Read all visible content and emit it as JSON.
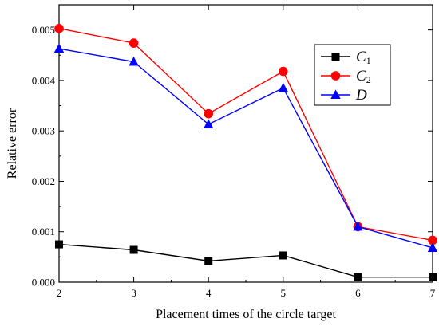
{
  "chart_data": {
    "type": "line",
    "title": "",
    "xlabel": "Placement times of the circle target",
    "ylabel": "Relative error",
    "x": [
      2,
      3,
      4,
      5,
      6,
      7
    ],
    "xlim": [
      2,
      7
    ],
    "ylim": [
      0,
      0.0055
    ],
    "xticks": [
      "2",
      "3",
      "4",
      "5",
      "6",
      "7"
    ],
    "yticks": [
      "0.000",
      "0.001",
      "0.002",
      "0.003",
      "0.004",
      "0.005"
    ],
    "ytick_values": [
      0,
      0.001,
      0.002,
      0.003,
      0.004,
      0.005
    ],
    "grid": false,
    "legend_position": "top-right",
    "series": [
      {
        "name": "C",
        "subscript": "1",
        "color": "#000000",
        "marker": "square",
        "values": [
          0.00075,
          0.00064,
          0.00042,
          0.00053,
          0.0001,
          0.0001
        ]
      },
      {
        "name": "C",
        "subscript": "2",
        "color": "#ff0000",
        "marker": "circle",
        "values": [
          0.00503,
          0.00474,
          0.00334,
          0.00418,
          0.0011,
          0.00083
        ]
      },
      {
        "name": "D",
        "subscript": "",
        "color": "#0000ff",
        "marker": "triangle",
        "values": [
          0.00463,
          0.00437,
          0.00313,
          0.00385,
          0.0011,
          0.00068
        ]
      }
    ]
  }
}
